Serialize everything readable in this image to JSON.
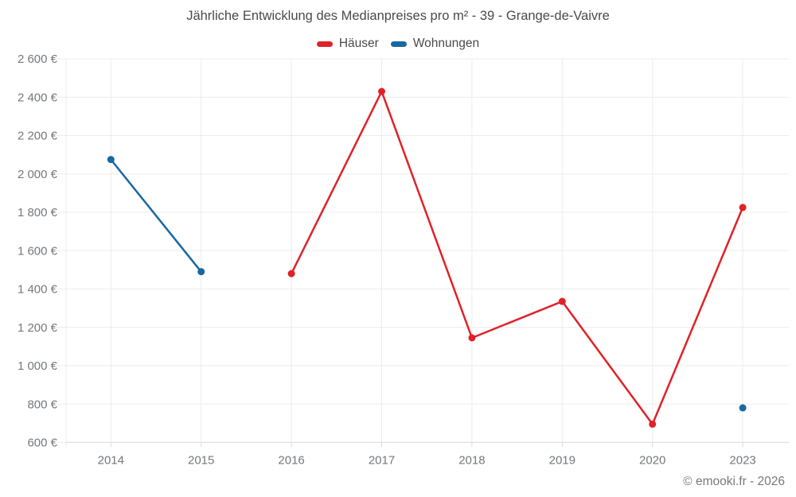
{
  "title": "Jährliche Entwicklung des Medianpreises pro m² - 39 - Grange-de-Vaivre",
  "footer": "© emooki.fr - 2026",
  "legend": {
    "items": [
      {
        "label": "Häuser",
        "color": "#df2228"
      },
      {
        "label": "Wohnungen",
        "color": "#1669a2"
      }
    ]
  },
  "style": {
    "title_color": "#4a4a4a",
    "tick_label_color": "#75787c",
    "grid_color": "#ececec",
    "axis_color": "#dcdcdc"
  },
  "chart_data": {
    "type": "line",
    "title": "Jährliche Entwicklung des Medianpreises pro m² - 39 - Grange-de-Vaivre",
    "categories": [
      "2014",
      "2015",
      "2016",
      "2017",
      "2018",
      "2019",
      "2020",
      "2023"
    ],
    "series": [
      {
        "name": "Häuser",
        "color": "#df2228",
        "values": [
          null,
          null,
          1480,
          2430,
          1145,
          1335,
          695,
          1825
        ]
      },
      {
        "name": "Wohnungen",
        "color": "#1669a2",
        "values": [
          2075,
          1490,
          null,
          null,
          null,
          null,
          null,
          780
        ]
      }
    ],
    "ylim": [
      600,
      2600
    ],
    "ytick_values": [
      600,
      800,
      1000,
      1200,
      1400,
      1600,
      1800,
      2000,
      2200,
      2400,
      2600
    ],
    "ytick_labels": [
      "600 €",
      "800 €",
      "1 000 €",
      "1 200 €",
      "1 400 €",
      "1 600 €",
      "1 800 €",
      "2 000 €",
      "2 200 €",
      "2 400 €",
      "2 600 €"
    ],
    "xlabel": "",
    "ylabel": "",
    "grid": true,
    "legend_position": "top",
    "annotations": []
  }
}
